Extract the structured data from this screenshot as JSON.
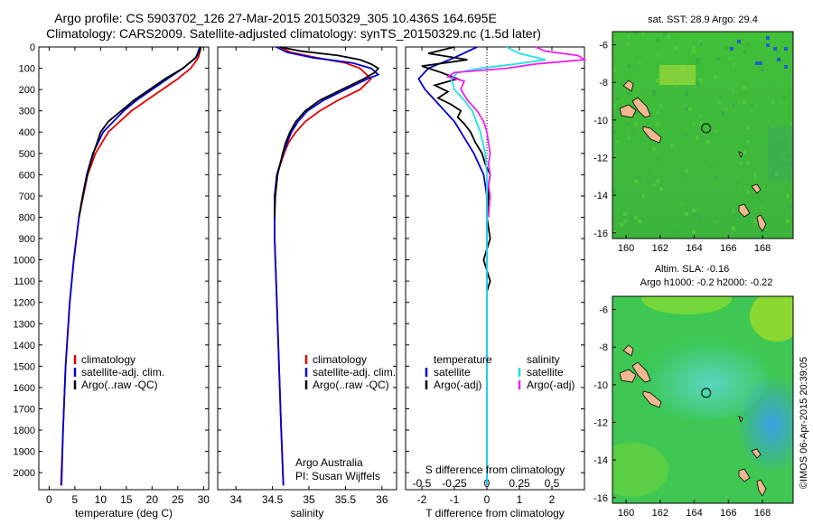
{
  "header": {
    "title_line1": "Argo profile: CS 5903702_126 27-Mar-2015 20150329_305 10.436S 164.695E",
    "title_line2": "Climatology: CARS2009. Satellite-adjusted climatology: synTS_20150329.nc (1.5d later)"
  },
  "colors": {
    "climatology": "#e00000",
    "satellite_adj": "#0000cc",
    "argo": "#000000",
    "salinity_satellite": "#22e0e8",
    "salinity_argo": "#ee22ee"
  },
  "chart_data": [
    {
      "type": "line",
      "xlabel": "temperature (deg C)",
      "xticks": [
        0,
        5,
        10,
        15,
        20,
        25,
        30
      ],
      "xlim": [
        -2,
        31
      ],
      "ylim": [
        0,
        2080
      ],
      "yticks": [
        0,
        100,
        200,
        300,
        400,
        500,
        600,
        700,
        800,
        900,
        1000,
        1100,
        1200,
        1300,
        1400,
        1500,
        1600,
        1700,
        1800,
        1900,
        2000
      ],
      "legend": [
        "climatology",
        "satellite-adj. clim.",
        "Argo(..raw -QC)"
      ],
      "series": [
        {
          "name": "climatology",
          "depth": [
            0,
            50,
            100,
            150,
            200,
            250,
            300,
            400,
            500,
            600,
            800,
            1000,
            1200,
            1500,
            1800,
            2060
          ],
          "values": [
            29.5,
            29.0,
            27.5,
            25.0,
            22.0,
            19.0,
            16.0,
            11.5,
            9.0,
            7.5,
            5.8,
            4.8,
            4.0,
            3.2,
            2.7,
            2.3
          ]
        },
        {
          "name": "satellite-adj. clim.",
          "depth": [
            0,
            50,
            100,
            150,
            200,
            250,
            300,
            400,
            500,
            600,
            800,
            1000,
            1200,
            1500,
            1800,
            2060
          ],
          "values": [
            29.3,
            28.5,
            26.0,
            23.0,
            20.0,
            17.0,
            14.5,
            10.5,
            8.5,
            7.3,
            5.8,
            4.8,
            4.0,
            3.2,
            2.7,
            2.4
          ]
        },
        {
          "name": "Argo(..raw -QC)",
          "depth": [
            0,
            20,
            50,
            80,
            100,
            150,
            200,
            250,
            300,
            350,
            400,
            450,
            500,
            600,
            700,
            800
          ],
          "values": [
            29.4,
            29.3,
            28.5,
            27.0,
            26.0,
            22.5,
            19.5,
            16.5,
            14.0,
            11.5,
            10.0,
            9.3,
            8.6,
            7.4,
            6.5,
            5.8
          ]
        }
      ]
    },
    {
      "type": "line",
      "xlabel": "salinity",
      "xticks": [
        34,
        34.5,
        35,
        35.5,
        36
      ],
      "xlim": [
        33.75,
        36.2
      ],
      "legend": [
        "climatology",
        "satellite-adj. clim.",
        "Argo(..raw -QC)"
      ],
      "annotation": [
        "Argo Australia",
        "PI: Susan Wijffels"
      ],
      "series": [
        {
          "name": "climatology",
          "depth": [
            0,
            25,
            50,
            75,
            100,
            150,
            200,
            250,
            300,
            350,
            400,
            450,
            500,
            600,
            700,
            900,
            1200,
            1500,
            1800,
            2060
          ],
          "values": [
            34.6,
            34.75,
            35.1,
            35.5,
            35.7,
            35.85,
            35.7,
            35.4,
            35.15,
            34.95,
            34.82,
            34.72,
            34.66,
            34.56,
            34.53,
            34.53,
            34.56,
            34.59,
            34.62,
            34.65
          ]
        },
        {
          "name": "satellite-adj. clim.",
          "depth": [
            0,
            25,
            50,
            75,
            100,
            130,
            150,
            200,
            250,
            300,
            350,
            400,
            450,
            500,
            600,
            700,
            900,
            1200,
            1500,
            1800,
            2060
          ],
          "values": [
            34.55,
            34.7,
            35.05,
            35.6,
            35.85,
            35.95,
            35.8,
            35.5,
            35.2,
            34.98,
            34.85,
            34.76,
            34.7,
            34.65,
            34.56,
            34.53,
            34.53,
            34.56,
            34.59,
            34.62,
            34.65
          ]
        },
        {
          "name": "Argo(..raw -QC)",
          "depth": [
            0,
            20,
            40,
            60,
            80,
            100,
            120,
            150,
            200,
            250,
            300,
            350,
            400,
            450,
            500,
            600,
            700,
            800
          ],
          "values": [
            34.6,
            34.9,
            35.4,
            35.7,
            35.85,
            35.95,
            35.9,
            35.75,
            35.45,
            35.15,
            34.95,
            34.82,
            34.74,
            34.68,
            34.64,
            34.57,
            34.54,
            34.53
          ]
        }
      ]
    },
    {
      "type": "line",
      "xlabel": "T difference from climatology",
      "xlabel_top": "S difference from climatology",
      "xticks": [
        -2,
        -1,
        0,
        1,
        2
      ],
      "xticks_top": [
        "-0.5",
        "-0.25",
        "0",
        "0.25",
        "0.5"
      ],
      "xlim": [
        -2.5,
        3
      ],
      "legend_temperature": [
        "temperature",
        "satellite",
        "Argo(-adj)"
      ],
      "legend_salinity": [
        "salinity",
        "satellite",
        "Argo(-adj)"
      ],
      "series": [
        {
          "name": "temperature satellite",
          "depth": [
            0,
            50,
            100,
            150,
            200,
            250,
            300,
            350,
            400,
            450,
            500,
            550,
            600,
            700,
            900,
            1200,
            1500,
            1800,
            2060
          ],
          "values": [
            -0.3,
            -1.0,
            -1.8,
            -2.1,
            -1.9,
            -1.6,
            -1.3,
            -1.0,
            -0.8,
            -0.6,
            -0.4,
            -0.25,
            -0.1,
            0,
            0,
            0,
            0,
            0,
            0
          ]
        },
        {
          "name": "temperature Argo(-adj)",
          "depth": [
            0,
            30,
            60,
            90,
            120,
            150,
            180,
            210,
            240,
            270,
            300,
            330,
            360,
            400,
            450,
            500,
            550,
            600,
            650,
            700,
            800,
            900,
            1000,
            1100,
            1150
          ],
          "values": [
            -1.0,
            -1.8,
            -0.6,
            -2.0,
            -1.4,
            -0.9,
            -1.6,
            -1.2,
            -1.5,
            -1.1,
            -0.8,
            -0.9,
            -0.7,
            -0.5,
            -0.35,
            -0.15,
            -0.05,
            0.1,
            0.05,
            0.05,
            0,
            0.1,
            -0.1,
            0.1,
            0
          ]
        },
        {
          "name": "salinity satellite",
          "depth": [
            0,
            30,
            60,
            80,
            100,
            120,
            150,
            200,
            250,
            300,
            400,
            500,
            600,
            700,
            900,
            1200,
            1500,
            1800,
            2060
          ],
          "values": [
            0.6,
            1.0,
            1.8,
            0.9,
            -0.2,
            -0.9,
            -1.1,
            -1.0,
            -0.7,
            -0.45,
            -0.2,
            -0.05,
            0,
            0,
            0,
            0,
            0,
            0,
            0
          ]
        },
        {
          "name": "salinity Argo(-adj)",
          "depth": [
            0,
            20,
            40,
            60,
            80,
            100,
            120,
            140,
            160,
            200,
            250,
            300,
            350,
            400,
            450,
            500,
            550,
            600,
            650,
            700,
            800
          ],
          "values": [
            1.5,
            1.8,
            2.8,
            3.0,
            1.5,
            0.6,
            -1.0,
            -1.2,
            -0.7,
            -0.8,
            -0.6,
            -0.3,
            -0.1,
            0,
            0.05,
            0.1,
            0.05,
            0.1,
            0.05,
            0.1,
            0.05
          ]
        }
      ]
    }
  ],
  "maps": {
    "sst_title": "sat. SST: 28.9 Argo: 29.4",
    "sla_title1": "Altim. SLA: -0.16",
    "sla_title2": "Argo h1000: -0.2 h2000: -0.22",
    "xticks": [
      "160",
      "162",
      "164",
      "166",
      "168"
    ],
    "yticks": [
      "-6",
      "-8",
      "-10",
      "-12",
      "-14",
      "-16"
    ],
    "marker": {
      "lon": 164.695,
      "lat": -10.436
    },
    "lon_range": [
      159.2,
      169.8
    ],
    "lat_range": [
      -16.3,
      -5.3
    ]
  },
  "footer": {
    "credit": "©IMOS 06-Apr-2015 20:39:05"
  }
}
